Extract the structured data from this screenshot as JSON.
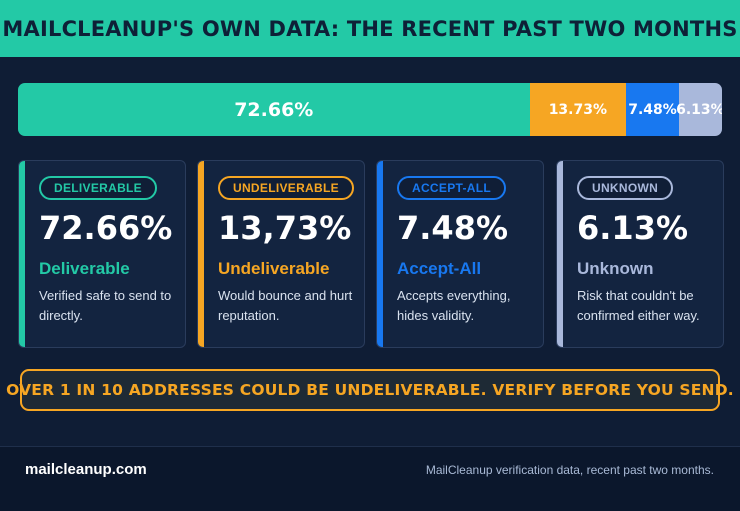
{
  "header": {
    "title": "MAILCLEANUP'S OWN DATA: THE RECENT PAST TWO MONTHS"
  },
  "colors": {
    "deliverable": "#23c9a6",
    "undeliverable": "#f6a623",
    "accept_all": "#1878f0",
    "unknown": "#a9b8db",
    "background": "#0f1d35",
    "header": "#23c9a6"
  },
  "chart_data": {
    "type": "bar",
    "orientation": "horizontal-stacked",
    "categories": [
      "Deliverable",
      "Undeliverable",
      "Accept-All",
      "Unknown"
    ],
    "values": [
      72.66,
      13.73,
      7.48,
      6.13
    ],
    "labels": [
      "72.66%",
      "13.73%",
      "7.48%",
      "6.13%"
    ],
    "title": "MAILCLEANUP'S OWN DATA: THE RECENT PAST TWO MONTHS",
    "xlabel": "",
    "ylabel": "",
    "xlim": [
      0,
      100
    ],
    "grid": false
  },
  "cards": [
    {
      "badge": "DELIVERABLE",
      "percent": "72.66%",
      "title": "Deliverable",
      "desc": "Verified safe to send to directly.",
      "color": "#23c9a6"
    },
    {
      "badge": "UNDELIVERABLE",
      "percent": "13,73%",
      "title": "Undeliverable",
      "desc": "Would bounce and hurt reputation.",
      "color": "#f6a623"
    },
    {
      "badge": "ACCEPT-ALL",
      "percent": "7.48%",
      "title": "Accept-All",
      "desc": "Accepts everything, hides validity.",
      "color": "#1878f0"
    },
    {
      "badge": "UNKNOWN",
      "percent": "6.13%",
      "title": "Unknown",
      "desc": "Risk that couldn't be confirmed either way.",
      "color": "#a9b8db"
    }
  ],
  "callout": {
    "text": "OVER 1 IN 10 ADDRESSES COULD BE UNDELIVERABLE. VERIFY BEFORE YOU SEND."
  },
  "footer": {
    "site": "mailcleanup.com",
    "note": "MailCleanup verification data, recent past two months."
  }
}
